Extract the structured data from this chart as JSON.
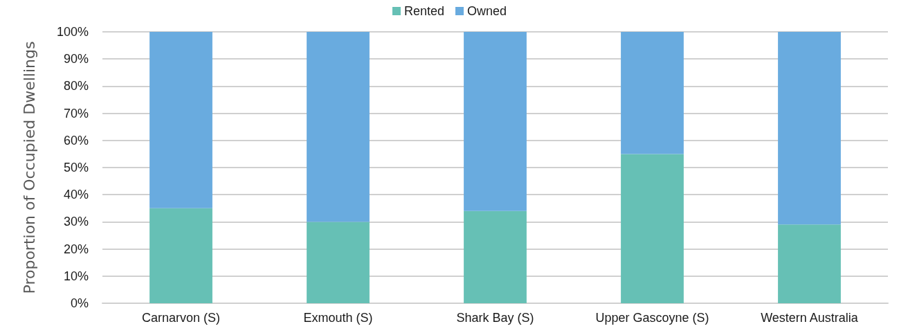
{
  "chart_data": {
    "type": "bar",
    "stacked": true,
    "ylabel": "Proportion of Occupied Dwellings",
    "categories": [
      "Carnarvon (S)",
      "Exmouth (S)",
      "Shark Bay (S)",
      "Upper Gascoyne (S)",
      "Western Australia"
    ],
    "series": [
      {
        "name": "Rented",
        "color": "#66c0b5",
        "values": [
          35,
          30,
          34,
          55,
          29
        ]
      },
      {
        "name": "Owned",
        "color": "#69abdf",
        "values": [
          65,
          70,
          66,
          45,
          71
        ]
      }
    ],
    "ylim": [
      0,
      100
    ],
    "yticks": [
      {
        "value": 0,
        "label": "0%"
      },
      {
        "value": 10,
        "label": "10%"
      },
      {
        "value": 20,
        "label": "20%"
      },
      {
        "value": 30,
        "label": "30%"
      },
      {
        "value": 40,
        "label": "40%"
      },
      {
        "value": 50,
        "label": "50%"
      },
      {
        "value": 60,
        "label": "60%"
      },
      {
        "value": 70,
        "label": "70%"
      },
      {
        "value": 80,
        "label": "80%"
      },
      {
        "value": 90,
        "label": "90%"
      },
      {
        "value": 100,
        "label": "100%"
      }
    ],
    "grid": "y",
    "legend": "top"
  }
}
